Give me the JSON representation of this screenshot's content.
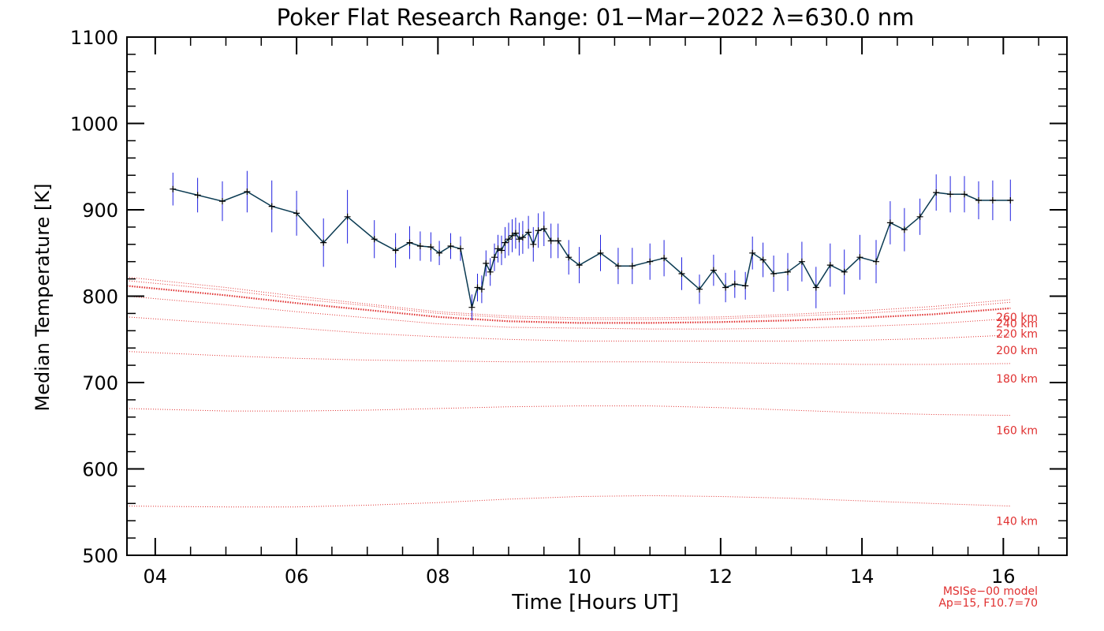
{
  "chart_data": {
    "type": "line",
    "title": "Poker Flat Research Range: 01−Mar−2022 λ=630.0 nm",
    "xlabel": "Time [Hours UT]",
    "ylabel": "Median Temperature [K]",
    "xlim": [
      3.6,
      16.9
    ],
    "ylim": [
      500,
      1100
    ],
    "x_ticks": [
      4,
      6,
      8,
      10,
      12,
      14,
      16
    ],
    "x_tick_labels": [
      "04",
      "06",
      "08",
      "10",
      "12",
      "14",
      "16"
    ],
    "y_ticks": [
      500,
      600,
      700,
      800,
      900,
      1000,
      1100
    ],
    "y_tick_labels": [
      "500",
      "600",
      "700",
      "800",
      "900",
      "1000",
      "1100"
    ],
    "series": [
      {
        "name": "Median Temperature",
        "color": "#0a3a52",
        "errorbar_color": "#2020e0",
        "x": [
          4.25,
          4.6,
          4.95,
          5.3,
          5.65,
          6.0,
          6.38,
          6.72,
          7.1,
          7.4,
          7.6,
          7.75,
          7.9,
          8.02,
          8.18,
          8.32,
          8.48,
          8.56,
          8.62,
          8.68,
          8.74,
          8.8,
          8.85,
          8.9,
          8.95,
          9.0,
          9.05,
          9.1,
          9.15,
          9.2,
          9.28,
          9.35,
          9.42,
          9.5,
          9.6,
          9.7,
          9.85,
          10.0,
          10.3,
          10.55,
          10.75,
          11.0,
          11.2,
          11.45,
          11.7,
          11.9,
          12.07,
          12.2,
          12.35,
          12.45,
          12.6,
          12.75,
          12.95,
          13.15,
          13.35,
          13.55,
          13.75,
          13.97,
          14.2,
          14.4,
          14.6,
          14.82,
          15.05,
          15.25,
          15.45,
          15.65,
          15.85,
          16.1
        ],
        "y": [
          924,
          917,
          910,
          921,
          904,
          896,
          862,
          892,
          866,
          853,
          862,
          858,
          857,
          850,
          858,
          855,
          787,
          810,
          808,
          838,
          828,
          845,
          855,
          853,
          862,
          866,
          870,
          873,
          866,
          868,
          874,
          860,
          876,
          878,
          864,
          864,
          845,
          836,
          850,
          835,
          835,
          840,
          844,
          826,
          808,
          830,
          810,
          814,
          812,
          850,
          842,
          826,
          828,
          840,
          810,
          836,
          828,
          845,
          840,
          885,
          877,
          892,
          920,
          918,
          918,
          911,
          911,
          911
        ],
        "errors": [
          19,
          20,
          23,
          24,
          30,
          26,
          28,
          31,
          22,
          20,
          19,
          17,
          17,
          14,
          15,
          14,
          15,
          16,
          16,
          15,
          16,
          16,
          16,
          17,
          18,
          19,
          19,
          18,
          19,
          19,
          19,
          20,
          20,
          20,
          20,
          20,
          20,
          21,
          21,
          21,
          21,
          21,
          21,
          19,
          17,
          18,
          17,
          16,
          16,
          19,
          20,
          21,
          22,
          23,
          24,
          25,
          26,
          26,
          25,
          25,
          25,
          21,
          21,
          21,
          21,
          22,
          23,
          24
        ]
      }
    ],
    "model": {
      "color": "#e03030",
      "x": [
        3.6,
        5,
        6,
        7,
        8,
        9,
        10,
        11,
        12,
        13,
        14,
        15,
        16.1
      ],
      "curves": [
        {
          "label": "140 km",
          "y": [
            557,
            556,
            556,
            558,
            561,
            565,
            568,
            569,
            568,
            566,
            563,
            560,
            557
          ]
        },
        {
          "label": "160 km",
          "y": [
            670,
            667,
            667,
            668,
            670,
            672,
            673,
            673,
            671,
            668,
            665,
            663,
            662
          ]
        },
        {
          "label": "180 km",
          "y": [
            736,
            731,
            728,
            726,
            725,
            724,
            724,
            724,
            723,
            722,
            721,
            721,
            722
          ]
        },
        {
          "label": "200 km",
          "y": [
            776,
            768,
            763,
            757,
            753,
            750,
            748,
            748,
            748,
            748,
            749,
            751,
            755
          ]
        },
        {
          "label": "220 km",
          "y": [
            800,
            790,
            782,
            775,
            768,
            764,
            763,
            762,
            762,
            763,
            765,
            768,
            774
          ]
        },
        {
          "label": "240 km",
          "y": [
            812,
            801,
            792,
            784,
            776,
            771,
            769,
            769,
            770,
            772,
            775,
            779,
            786
          ]
        },
        {
          "label": "260 km",
          "y": [
            818,
            807,
            797,
            789,
            780,
            775,
            773,
            773,
            774,
            777,
            780,
            785,
            793
          ]
        },
        {
          "label": "",
          "y": [
            822,
            810,
            800,
            791,
            782,
            777,
            775,
            775,
            776,
            779,
            783,
            788,
            796
          ]
        }
      ]
    },
    "model_note": [
      "MSISe−00 model",
      "Ap=15, F10.7=70"
    ]
  }
}
